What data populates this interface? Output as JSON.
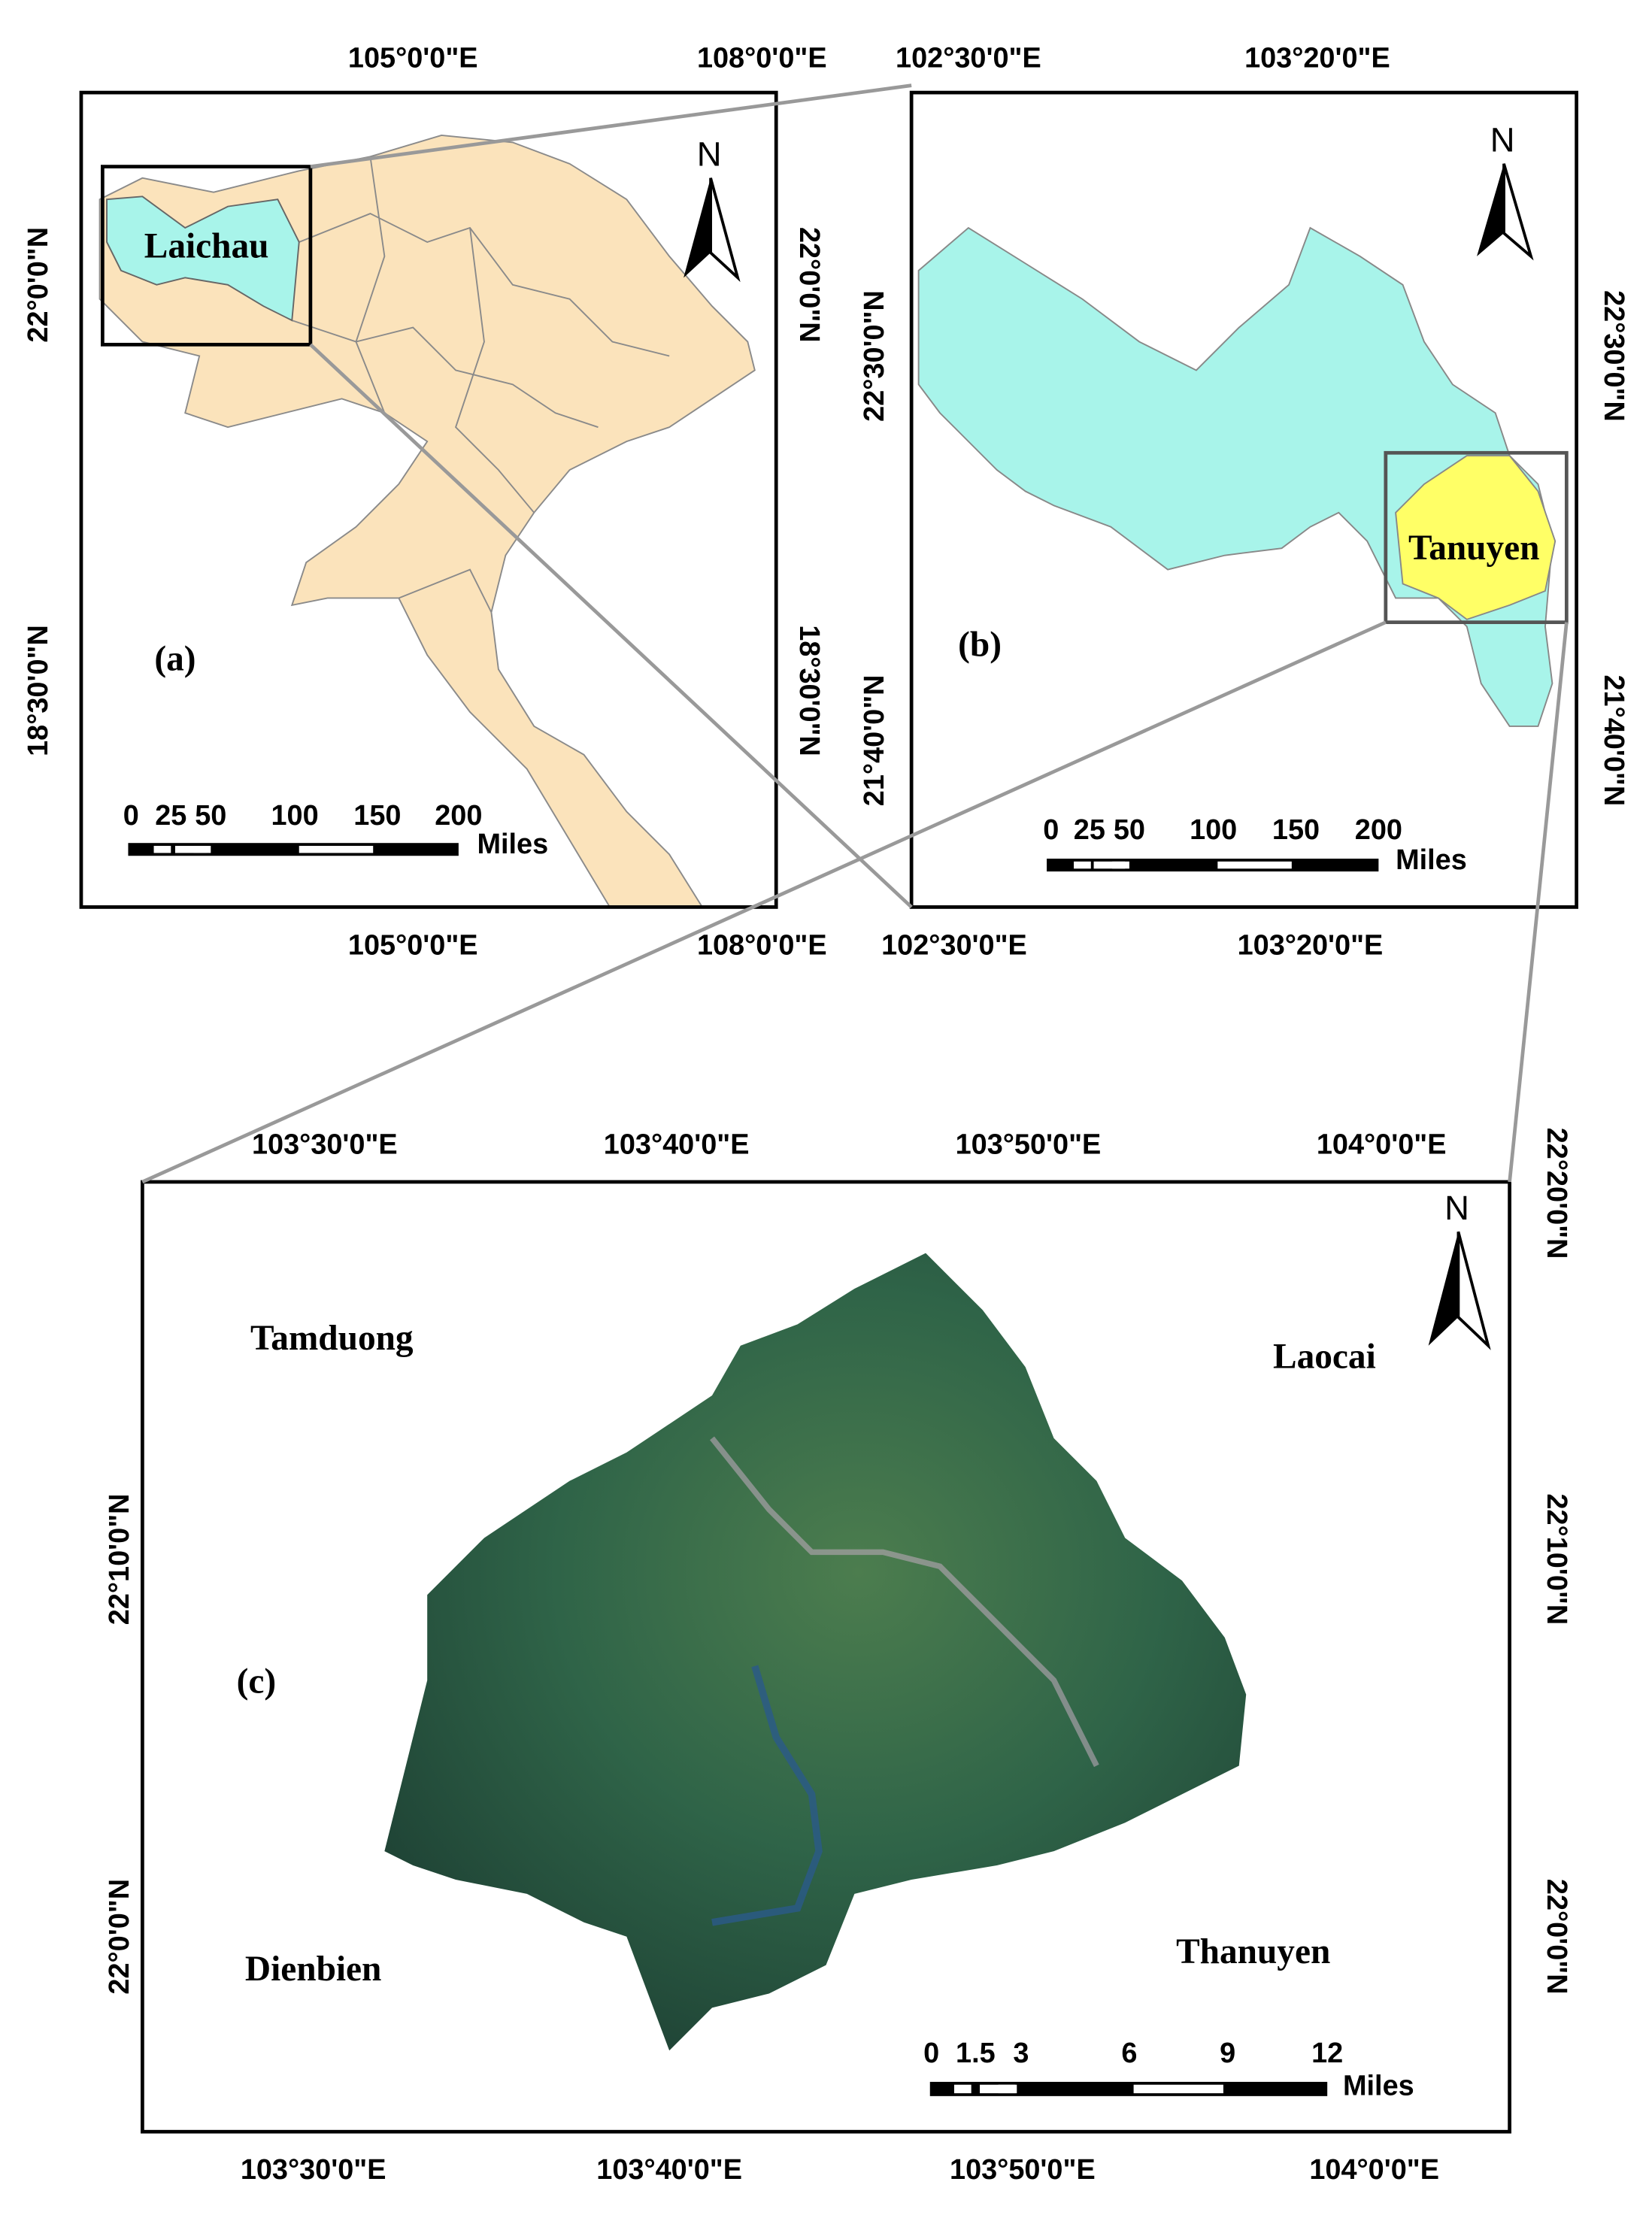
{
  "panels": [
    {
      "label": "(a)",
      "top_ticks": [
        "105°0'0\"E",
        "108°0'0\"E"
      ],
      "bottom_ticks": [
        "105°0'0\"E",
        "108°0'0\"E"
      ],
      "left_ticks": [
        "22°0'0\"N",
        "18°30'0\"N"
      ],
      "right_ticks": [
        "22°0'0\"N",
        "18°30'0\"N"
      ],
      "places": [
        "Laichau"
      ],
      "scale_labels": [
        "0",
        "25",
        "50",
        "100",
        "150",
        "200"
      ],
      "scale_unit": "Miles",
      "north": "N"
    },
    {
      "label": "(b)",
      "top_ticks": [
        "102°30'0\"E",
        "103°20'0\"E"
      ],
      "bottom_ticks": [
        "102°30'0\"E",
        "103°20'0\"E"
      ],
      "left_ticks": [
        "22°30'0\"N",
        "21°40'0\"N"
      ],
      "right_ticks": [
        "22°30'0\"N",
        "21°40'0\"N"
      ],
      "places": [
        "Tanuyen"
      ],
      "scale_labels": [
        "0",
        "25",
        "50",
        "100",
        "150",
        "200"
      ],
      "scale_unit": "Miles",
      "north": "N"
    },
    {
      "label": "(c)",
      "top_ticks": [
        "103°30'0\"E",
        "103°40'0\"E",
        "103°50'0\"E",
        "104°0'0\"E"
      ],
      "bottom_ticks": [
        "103°30'0\"E",
        "103°40'0\"E",
        "103°50'0\"E",
        "104°0'0\"E"
      ],
      "left_ticks": [
        "22°10'0\"N",
        "22°0'0\"N"
      ],
      "right_ticks": [
        "22°20'0\"N",
        "22°10'0\"N",
        "22°0'0\"N"
      ],
      "places": [
        "Tamduong",
        "Laocai",
        "Dienbien",
        "Thanuyen"
      ],
      "scale_labels": [
        "0",
        "1.5",
        "3",
        "6",
        "9",
        "12"
      ],
      "scale_unit": "Miles",
      "north": "N"
    }
  ]
}
